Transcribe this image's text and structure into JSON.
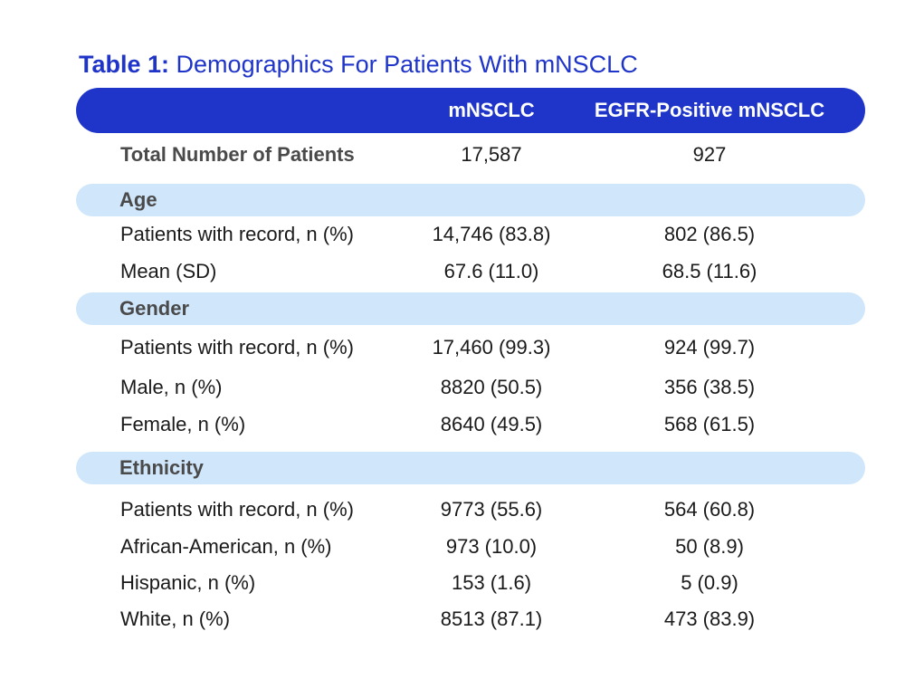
{
  "title": {
    "prefix": "Table 1:",
    "text": "Demographics For Patients With mNSCLC"
  },
  "columns": [
    "mNSCLC",
    "EGFR-Positive mNSCLC"
  ],
  "total": {
    "label": "Total Number of Patients",
    "values": [
      "17,587",
      "927"
    ]
  },
  "sections": [
    {
      "name": "Age",
      "rows": [
        {
          "label": "Patients with record, n (%)",
          "values": [
            "14,746 (83.8)",
            "802 (86.5)"
          ]
        },
        {
          "label": "Mean (SD)",
          "values": [
            "67.6 (11.0)",
            "68.5 (11.6)"
          ]
        }
      ]
    },
    {
      "name": "Gender",
      "rows": [
        {
          "label": "Patients with record, n (%)",
          "values": [
            "17,460 (99.3)",
            "924 (99.7)"
          ]
        },
        {
          "label": "Male, n (%)",
          "values": [
            "8820 (50.5)",
            "356 (38.5)"
          ]
        },
        {
          "label": "Female, n (%)",
          "values": [
            "8640 (49.5)",
            "568 (61.5)"
          ]
        }
      ]
    },
    {
      "name": "Ethnicity",
      "rows": [
        {
          "label": "Patients with record, n (%)",
          "values": [
            "9773 (55.6)",
            "564 (60.8)"
          ]
        },
        {
          "label": "African-American, n (%)",
          "values": [
            "973 (10.0)",
            "50 (8.9)"
          ]
        },
        {
          "label": "Hispanic, n (%)",
          "values": [
            "153 (1.6)",
            "5 (0.9)"
          ]
        },
        {
          "label": "White, n (%)",
          "values": [
            "8513 (87.1)",
            "473 (83.9)"
          ]
        }
      ]
    }
  ],
  "colors": {
    "header": "#1f35c9",
    "section_band": "#cfe6fb",
    "title": "#1f35c9"
  }
}
